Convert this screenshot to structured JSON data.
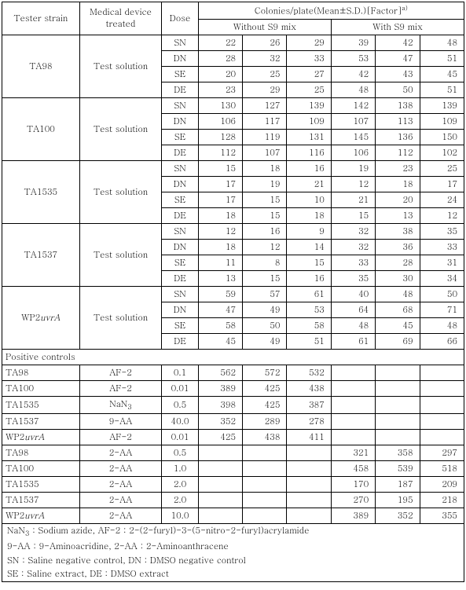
{
  "header": {
    "strain": "Tester strain",
    "device": "Medical device treated",
    "dose": "Dose",
    "colonies": "Colonies/plate(Mean±S.D.)[Factor]",
    "colonies_sup": "a)",
    "without": "Without S9 mix",
    "with": "With S9 mix"
  },
  "groups": [
    {
      "strain": "TA98",
      "device": "Test solution",
      "rows": [
        {
          "dose": "SN",
          "w": [
            "22",
            "26",
            "29"
          ],
          "s": [
            "39",
            "42",
            "48"
          ]
        },
        {
          "dose": "DN",
          "w": [
            "28",
            "32",
            "33"
          ],
          "s": [
            "53",
            "47",
            "51"
          ]
        },
        {
          "dose": "SE",
          "w": [
            "20",
            "25",
            "27"
          ],
          "s": [
            "42",
            "43",
            "45"
          ]
        },
        {
          "dose": "DE",
          "w": [
            "23",
            "29",
            "25"
          ],
          "s": [
            "48",
            "50",
            "51"
          ]
        }
      ]
    },
    {
      "strain": "TA100",
      "device": "Test solution",
      "rows": [
        {
          "dose": "SN",
          "w": [
            "130",
            "127",
            "139"
          ],
          "s": [
            "142",
            "138",
            "139"
          ]
        },
        {
          "dose": "DN",
          "w": [
            "106",
            "117",
            "109"
          ],
          "s": [
            "107",
            "113",
            "109"
          ]
        },
        {
          "dose": "SE",
          "w": [
            "128",
            "119",
            "131"
          ],
          "s": [
            "145",
            "136",
            "150"
          ]
        },
        {
          "dose": "DE",
          "w": [
            "112",
            "107",
            "116"
          ],
          "s": [
            "106",
            "112",
            "102"
          ]
        }
      ]
    },
    {
      "strain": "TA1535",
      "device": "Test solution",
      "rows": [
        {
          "dose": "SN",
          "w": [
            "15",
            "18",
            "16"
          ],
          "s": [
            "19",
            "23",
            "25"
          ]
        },
        {
          "dose": "DN",
          "w": [
            "17",
            "19",
            "21"
          ],
          "s": [
            "12",
            "18",
            "17"
          ]
        },
        {
          "dose": "SE",
          "w": [
            "17",
            "15",
            "10"
          ],
          "s": [
            "21",
            "20",
            "24"
          ]
        },
        {
          "dose": "DE",
          "w": [
            "18",
            "15",
            "18"
          ],
          "s": [
            "15",
            "13",
            "12"
          ]
        }
      ]
    },
    {
      "strain": "TA1537",
      "device": "Test solution",
      "rows": [
        {
          "dose": "SN",
          "w": [
            "12",
            "16",
            "9"
          ],
          "s": [
            "32",
            "38",
            "35"
          ]
        },
        {
          "dose": "DN",
          "w": [
            "18",
            "12",
            "14"
          ],
          "s": [
            "32",
            "36",
            "33"
          ]
        },
        {
          "dose": "SE",
          "w": [
            "11",
            "8",
            "15"
          ],
          "s": [
            "33",
            "28",
            "31"
          ]
        },
        {
          "dose": "DE",
          "w": [
            "13",
            "15",
            "16"
          ],
          "s": [
            "35",
            "30",
            "34"
          ]
        }
      ]
    },
    {
      "strain_html": "WP2<span class=\"ital\">uvrA</span>",
      "device": "Test solution",
      "rows": [
        {
          "dose": "SN",
          "w": [
            "59",
            "57",
            "61"
          ],
          "s": [
            "40",
            "48",
            "50"
          ]
        },
        {
          "dose": "DN",
          "w": [
            "47",
            "49",
            "53"
          ],
          "s": [
            "64",
            "68",
            "71"
          ]
        },
        {
          "dose": "SE",
          "w": [
            "58",
            "50",
            "58"
          ],
          "s": [
            "48",
            "45",
            "48"
          ]
        },
        {
          "dose": "DE",
          "w": [
            "45",
            "49",
            "51"
          ],
          "s": [
            "61",
            "69",
            "66"
          ]
        }
      ]
    }
  ],
  "positive_header": "Positive controls",
  "positive_w": [
    {
      "strain": "TA98",
      "device": "AF-2",
      "dose": "0.1",
      "v": [
        "562",
        "572",
        "532"
      ]
    },
    {
      "strain": "TA100",
      "device": "AF-2",
      "dose": "0.01",
      "v": [
        "389",
        "425",
        "438"
      ]
    },
    {
      "strain": "TA1535",
      "device_html": "NaN<sub>3</sub>",
      "dose": "0.5",
      "v": [
        "398",
        "425",
        "387"
      ]
    },
    {
      "strain": "TA1537",
      "device": "9-AA",
      "dose": "40.0",
      "v": [
        "352",
        "289",
        "278"
      ]
    },
    {
      "strain_html": "WP2<span class=\"ital\">uvrA</span>",
      "device": "AF-2",
      "dose": "0.01",
      "v": [
        "425",
        "438",
        "411"
      ]
    }
  ],
  "positive_s": [
    {
      "strain": "TA98",
      "device": "2-AA",
      "dose": "0.5",
      "v": [
        "321",
        "358",
        "297"
      ]
    },
    {
      "strain": "TA100",
      "device": "2-AA",
      "dose": "1.0",
      "v": [
        "458",
        "539",
        "518"
      ]
    },
    {
      "strain": "TA1535",
      "device": "2-AA",
      "dose": "2.0",
      "v": [
        "170",
        "187",
        "209"
      ]
    },
    {
      "strain": "TA1537",
      "device": "2-AA",
      "dose": "2.0",
      "v": [
        "270",
        "195",
        "218"
      ]
    },
    {
      "strain_html": "WP2<span class=\"ital\">uvrA</span>",
      "device": "2-AA",
      "dose": "10.0",
      "v": [
        "389",
        "352",
        "355"
      ]
    }
  ],
  "footnotes": [
    "NaN<sub>3</sub> : Sodium azide, AF-2 : 2-(2-furyl)-3-(5-nitro-2-furyl)acrylamide",
    "9-AA : 9-Aminoacridine, 2-AA : 2-Aminoanthracene",
    "SN : Saline negative control, DN : DMSO negative control",
    "SE : Saline extract, DE : DMSO extract"
  ]
}
